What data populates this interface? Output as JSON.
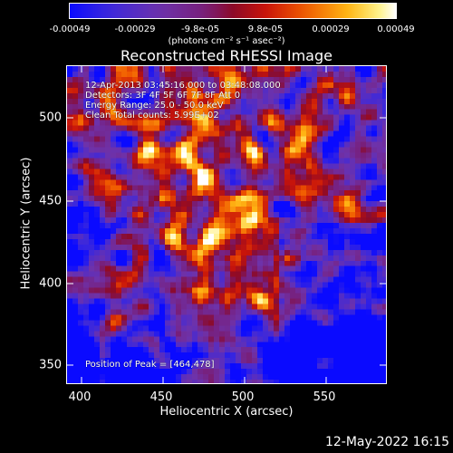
{
  "colorbar": {
    "ticks": [
      "-0.00049",
      "-0.00029",
      "-9.8e-05",
      "9.8e-05",
      "0.00029",
      "0.00049"
    ],
    "units": "(photons cm⁻² s⁻¹ asec⁻²)"
  },
  "title": "Reconstructed RHESSI Image",
  "info": {
    "time": "12-Apr-2013 03:45:16.000 to 03:48:08.000",
    "detectors": "Detectors: 3F 4F 5F 6F 7F 8F  Att 0",
    "energy": "Energy Range: 25.0 - 50.0 keV",
    "clean": "Clean    Total counts: 5.99E+02",
    "peak": "Position of Peak = [464,478]"
  },
  "axes": {
    "xlabel": "Heliocentric X (arcsec)",
    "ylabel": "Heliocentric Y (arcsec)",
    "xticks": [
      "400",
      "450",
      "500",
      "550"
    ],
    "yticks": [
      "500",
      "450",
      "400",
      "350"
    ]
  },
  "datestamp": "12-May-2022 16:15",
  "colors": {
    "background": "#000000",
    "text": "#ffffff"
  }
}
